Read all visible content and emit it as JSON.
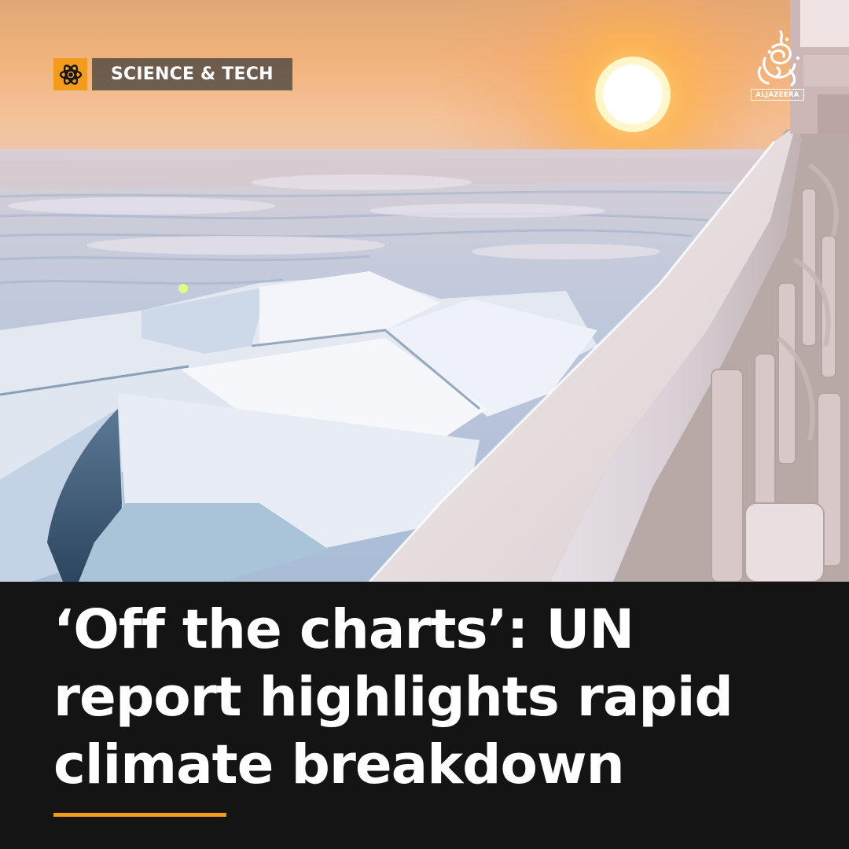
{
  "category": {
    "label": "SCIENCE & TECH",
    "icon": "atom-icon"
  },
  "brand": {
    "name": "ALJAZEERA",
    "logo_icon": "aljazeera-logo-icon"
  },
  "photo": {
    "subject": "sea ice"
  },
  "headline": {
    "lines": [
      "‘Off the charts’: UN",
      "report highlights rapid",
      "climate breakdown"
    ]
  },
  "colors": {
    "accent": "#f39b1c",
    "band_background": "#141414",
    "headline_text": "#ffffff",
    "tag_background": "#3a3a3a"
  }
}
